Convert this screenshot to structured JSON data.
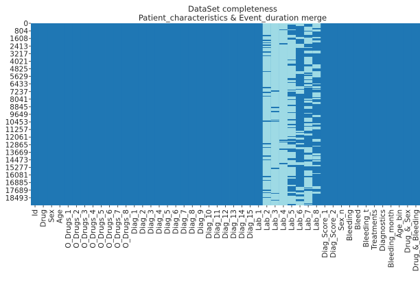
{
  "chart_data": {
    "type": "heatmap",
    "title": "DataSet completeness",
    "subtitle": "Patient_characteristics & Event_duration merge",
    "xlabel": "",
    "ylabel": "",
    "columns": [
      "Id",
      "Drug",
      "Sex",
      "Age",
      "O_Drugs_1",
      "O_Drugs_2",
      "O_Drugs_3",
      "O_Drugs_4",
      "O_Drugs_5",
      "O_Drugs_6",
      "O_Drugs_7",
      "O_Drugs_8",
      "Diag_1",
      "Diag_2",
      "Diag_3",
      "Diag_4",
      "Diag_5",
      "Diag_6",
      "Diag_7",
      "Diag_8",
      "Diag_9",
      "Diag_10",
      "Diag_11",
      "Diag_12",
      "Diag_13",
      "Diag_14",
      "Diag_15",
      "Lab_1",
      "Lab_2",
      "Lab_3",
      "Lab_4",
      "Lab_5",
      "Lab_6",
      "Lab_7",
      "Lab_8",
      "Diag_Score_1",
      "Diag_Score_2",
      "Sex_n",
      "Bleeding",
      "Bleed",
      "Bleeding_t",
      "Treatments",
      "Diagnostics",
      "Bleeding_month",
      "Age_bin",
      "Drug_&_Sex",
      "Drug_&_Bleeding"
    ],
    "y_ticks": [
      0,
      804,
      1608,
      2413,
      3217,
      4021,
      4825,
      5629,
      6433,
      7237,
      8041,
      8845,
      9649,
      10453,
      11257,
      12061,
      12865,
      13669,
      14473,
      15277,
      16081,
      16885,
      17689,
      18493
    ],
    "row_count": 19300,
    "colors": {
      "present": "#1f77b4",
      "missing": "#9edae5"
    },
    "missing_fraction": {
      "Lab_2": 0.72,
      "Lab_3": 0.92,
      "Lab_4": 0.95,
      "Lab_5": 0.55,
      "Lab_6": 0.1,
      "Lab_7": 0.45,
      "Lab_8": 0.2
    },
    "grid": false,
    "legend": "none"
  }
}
